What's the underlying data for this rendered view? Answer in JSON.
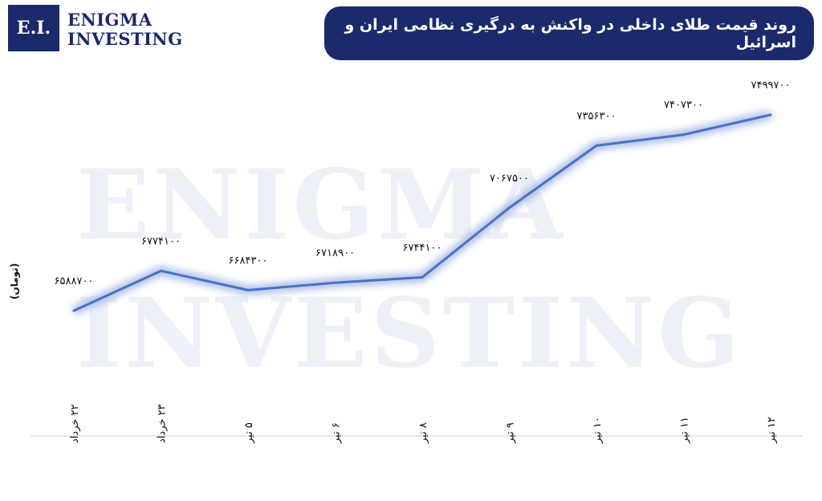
{
  "logo": {
    "box_text": "E.I.",
    "line1": "ENIGMA",
    "line2": "INVESTING"
  },
  "watermark": {
    "line1": "ENIGMA",
    "line2": "INVESTING"
  },
  "header": {
    "title": "روند قیمت طلای داخلی در واکنش به درگیری نظامی ایران و اسرائیل"
  },
  "colors": {
    "brand": "#1b2a6b",
    "line": "#4a70c8",
    "line_glow": "#9fb4e2"
  },
  "chart_data": {
    "type": "line",
    "title": "روند قیمت طلای داخلی در واکنش به درگیری نظامی ایران و اسرائیل",
    "ylabel": "(تومان)",
    "xlabel": "",
    "categories": [
      "۲۲ خرداد",
      "۲۳ خرداد",
      "۵ تیر",
      "۶ تیر",
      "۸ تیر",
      "۹ تیر",
      "۱۰ تیر",
      "۱۱ تیر",
      "۱۲ تیر"
    ],
    "values": [
      6588700,
      6774100,
      6684300,
      6718900,
      6744100,
      7067500,
      7356300,
      7407300,
      7499700
    ],
    "value_labels": [
      "۶۵۸۸۷۰۰",
      "۶۷۷۴۱۰۰",
      "۶۶۸۴۳۰۰",
      "۶۷۱۸۹۰۰",
      "۶۷۴۴۱۰۰",
      "۷۰۶۷۵۰۰",
      "۷۳۵۶۳۰۰",
      "۷۴۰۷۳۰۰",
      "۷۴۹۹۷۰۰"
    ],
    "grid": false,
    "legend": "none"
  }
}
